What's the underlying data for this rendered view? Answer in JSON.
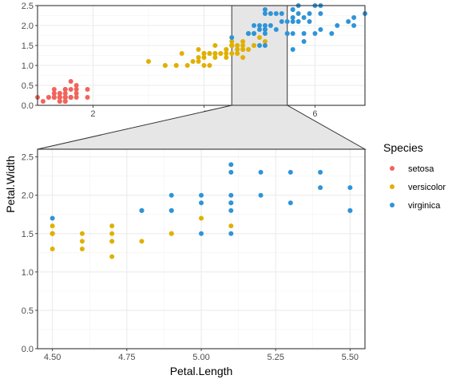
{
  "chart_data": {
    "type": "scatter",
    "xlabel": "Petal.Length",
    "ylabel": "Petal.Width",
    "legend": {
      "title": "Species",
      "placement": "right"
    },
    "colors": {
      "setosa": "#f0645a",
      "versicolor": "#e0b000",
      "virginica": "#2e94d8"
    },
    "overview": {
      "xlim": [
        1,
        6.9
      ],
      "ylim": [
        0,
        2.5
      ],
      "xticks": [
        "2",
        "4",
        "6"
      ],
      "yticks": [
        "0.0",
        "0.5",
        "1.0",
        "1.5",
        "2.0",
        "2.5"
      ],
      "zoom_region": {
        "x": [
          4.5,
          5.5
        ]
      },
      "grid": true
    },
    "zoom": {
      "xlim": [
        4.45,
        5.55
      ],
      "ylim": [
        0,
        2.6
      ],
      "xticks": [
        "4.50",
        "4.75",
        "5.00",
        "5.25",
        "5.50"
      ],
      "yticks": [
        "0.0",
        "0.5",
        "1.0",
        "1.5",
        "2.0",
        "2.5"
      ],
      "grid": true
    },
    "series": [
      {
        "name": "setosa",
        "points": [
          [
            1.4,
            0.2
          ],
          [
            1.4,
            0.2
          ],
          [
            1.3,
            0.2
          ],
          [
            1.5,
            0.2
          ],
          [
            1.4,
            0.2
          ],
          [
            1.7,
            0.4
          ],
          [
            1.4,
            0.3
          ],
          [
            1.5,
            0.2
          ],
          [
            1.4,
            0.2
          ],
          [
            1.5,
            0.1
          ],
          [
            1.5,
            0.2
          ],
          [
            1.6,
            0.2
          ],
          [
            1.4,
            0.1
          ],
          [
            1.1,
            0.1
          ],
          [
            1.2,
            0.2
          ],
          [
            1.5,
            0.4
          ],
          [
            1.3,
            0.4
          ],
          [
            1.4,
            0.3
          ],
          [
            1.7,
            0.3
          ],
          [
            1.5,
            0.3
          ],
          [
            1.7,
            0.2
          ],
          [
            1.5,
            0.4
          ],
          [
            1.0,
            0.2
          ],
          [
            1.7,
            0.5
          ],
          [
            1.9,
            0.2
          ],
          [
            1.6,
            0.2
          ],
          [
            1.6,
            0.4
          ],
          [
            1.5,
            0.2
          ],
          [
            1.4,
            0.2
          ],
          [
            1.6,
            0.2
          ],
          [
            1.6,
            0.2
          ],
          [
            1.5,
            0.4
          ],
          [
            1.5,
            0.1
          ],
          [
            1.4,
            0.2
          ],
          [
            1.5,
            0.2
          ],
          [
            1.2,
            0.2
          ],
          [
            1.3,
            0.2
          ],
          [
            1.4,
            0.1
          ],
          [
            1.3,
            0.2
          ],
          [
            1.5,
            0.2
          ],
          [
            1.3,
            0.3
          ],
          [
            1.3,
            0.3
          ],
          [
            1.3,
            0.2
          ],
          [
            1.6,
            0.6
          ],
          [
            1.9,
            0.4
          ],
          [
            1.4,
            0.3
          ],
          [
            1.6,
            0.2
          ],
          [
            1.4,
            0.2
          ],
          [
            1.5,
            0.2
          ],
          [
            1.4,
            0.2
          ]
        ]
      },
      {
        "name": "versicolor",
        "points": [
          [
            4.7,
            1.4
          ],
          [
            4.5,
            1.5
          ],
          [
            4.9,
            1.5
          ],
          [
            4.0,
            1.3
          ],
          [
            4.6,
            1.5
          ],
          [
            4.5,
            1.3
          ],
          [
            4.7,
            1.6
          ],
          [
            3.3,
            1.0
          ],
          [
            4.6,
            1.3
          ],
          [
            3.9,
            1.4
          ],
          [
            3.5,
            1.0
          ],
          [
            4.2,
            1.5
          ],
          [
            4.0,
            1.0
          ],
          [
            4.7,
            1.4
          ],
          [
            3.6,
            1.3
          ],
          [
            4.4,
            1.4
          ],
          [
            4.5,
            1.5
          ],
          [
            4.1,
            1.0
          ],
          [
            4.5,
            1.5
          ],
          [
            3.9,
            1.1
          ],
          [
            4.8,
            1.8
          ],
          [
            4.0,
            1.3
          ],
          [
            4.9,
            1.5
          ],
          [
            4.7,
            1.2
          ],
          [
            4.3,
            1.3
          ],
          [
            4.4,
            1.4
          ],
          [
            4.8,
            1.4
          ],
          [
            5.0,
            1.7
          ],
          [
            4.5,
            1.5
          ],
          [
            3.5,
            1.0
          ],
          [
            3.8,
            1.1
          ],
          [
            3.7,
            1.0
          ],
          [
            3.9,
            1.2
          ],
          [
            5.1,
            1.6
          ],
          [
            4.5,
            1.5
          ],
          [
            4.5,
            1.6
          ],
          [
            4.7,
            1.5
          ],
          [
            4.4,
            1.3
          ],
          [
            4.1,
            1.3
          ],
          [
            4.0,
            1.3
          ],
          [
            4.4,
            1.2
          ],
          [
            4.6,
            1.4
          ],
          [
            4.0,
            1.2
          ],
          [
            3.3,
            1.0
          ],
          [
            4.2,
            1.3
          ],
          [
            4.2,
            1.2
          ],
          [
            4.2,
            1.3
          ],
          [
            4.3,
            1.3
          ],
          [
            3.0,
            1.1
          ],
          [
            4.1,
            1.3
          ]
        ]
      },
      {
        "name": "virginica",
        "points": [
          [
            6.0,
            2.5
          ],
          [
            5.1,
            1.9
          ],
          [
            5.9,
            2.1
          ],
          [
            5.6,
            1.8
          ],
          [
            5.8,
            2.2
          ],
          [
            6.6,
            2.1
          ],
          [
            4.5,
            1.7
          ],
          [
            6.3,
            1.8
          ],
          [
            5.8,
            1.8
          ],
          [
            6.1,
            2.5
          ],
          [
            5.1,
            2.0
          ],
          [
            5.3,
            1.9
          ],
          [
            5.5,
            2.1
          ],
          [
            5.0,
            2.0
          ],
          [
            5.1,
            2.4
          ],
          [
            5.3,
            2.3
          ],
          [
            5.5,
            1.8
          ],
          [
            6.7,
            2.2
          ],
          [
            6.9,
            2.3
          ],
          [
            5.0,
            1.5
          ],
          [
            5.7,
            2.3
          ],
          [
            4.9,
            2.0
          ],
          [
            6.7,
            2.0
          ],
          [
            4.9,
            1.8
          ],
          [
            5.7,
            2.1
          ],
          [
            6.0,
            1.8
          ],
          [
            4.8,
            1.8
          ],
          [
            4.9,
            1.8
          ],
          [
            5.6,
            2.1
          ],
          [
            5.8,
            1.6
          ],
          [
            6.1,
            1.9
          ],
          [
            6.4,
            2.0
          ],
          [
            5.6,
            2.2
          ],
          [
            5.1,
            1.5
          ],
          [
            5.6,
            1.4
          ],
          [
            6.1,
            2.3
          ],
          [
            5.6,
            2.4
          ],
          [
            5.5,
            1.8
          ],
          [
            4.8,
            1.8
          ],
          [
            5.4,
            2.1
          ],
          [
            5.6,
            2.4
          ],
          [
            5.1,
            2.3
          ],
          [
            5.1,
            1.9
          ],
          [
            5.9,
            2.3
          ],
          [
            5.7,
            2.5
          ],
          [
            5.2,
            2.3
          ],
          [
            5.0,
            1.9
          ],
          [
            5.2,
            2.0
          ],
          [
            5.4,
            2.3
          ],
          [
            5.1,
            1.8
          ]
        ]
      }
    ]
  }
}
